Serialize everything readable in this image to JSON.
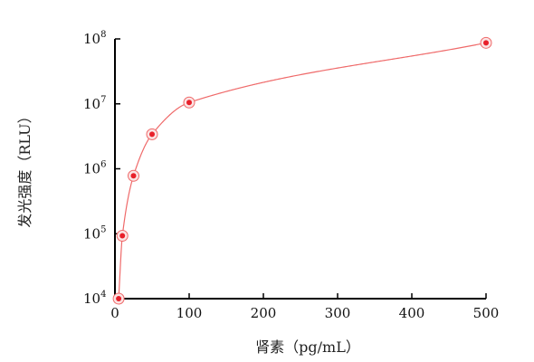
{
  "chart_data": {
    "type": "scatter",
    "xlabel": "肾素（pg/mL）",
    "ylabel": "发光强度（RLU）",
    "x_ticks": [
      {
        "value": 0,
        "label": "0"
      },
      {
        "value": 100,
        "label": "100"
      },
      {
        "value": 200,
        "label": "200"
      },
      {
        "value": 300,
        "label": "300"
      },
      {
        "value": 400,
        "label": "400"
      },
      {
        "value": 500,
        "label": "500"
      }
    ],
    "y_ticks": [
      {
        "value": 10000,
        "base": "10",
        "exp": "4"
      },
      {
        "value": 100000,
        "base": "10",
        "exp": "5"
      },
      {
        "value": 1000000,
        "base": "10",
        "exp": "6"
      },
      {
        "value": 10000000,
        "base": "10",
        "exp": "7"
      },
      {
        "value": 100000000,
        "base": "10",
        "exp": "8"
      }
    ],
    "xlim": [
      0,
      500
    ],
    "ylim": [
      10000,
      100000000
    ],
    "yscale": "log",
    "grid": false,
    "colors": {
      "points": "#e8202a",
      "fit_line": "#ef6a6a",
      "axes": "#000000"
    },
    "series": [
      {
        "points": [
          {
            "x": 5,
            "y": 10000
          },
          {
            "x": 10,
            "y": 93000
          },
          {
            "x": 25,
            "y": 780000
          },
          {
            "x": 50,
            "y": 3400000
          },
          {
            "x": 100,
            "y": 10500000
          },
          {
            "x": 500,
            "y": 87000000
          }
        ]
      }
    ]
  }
}
